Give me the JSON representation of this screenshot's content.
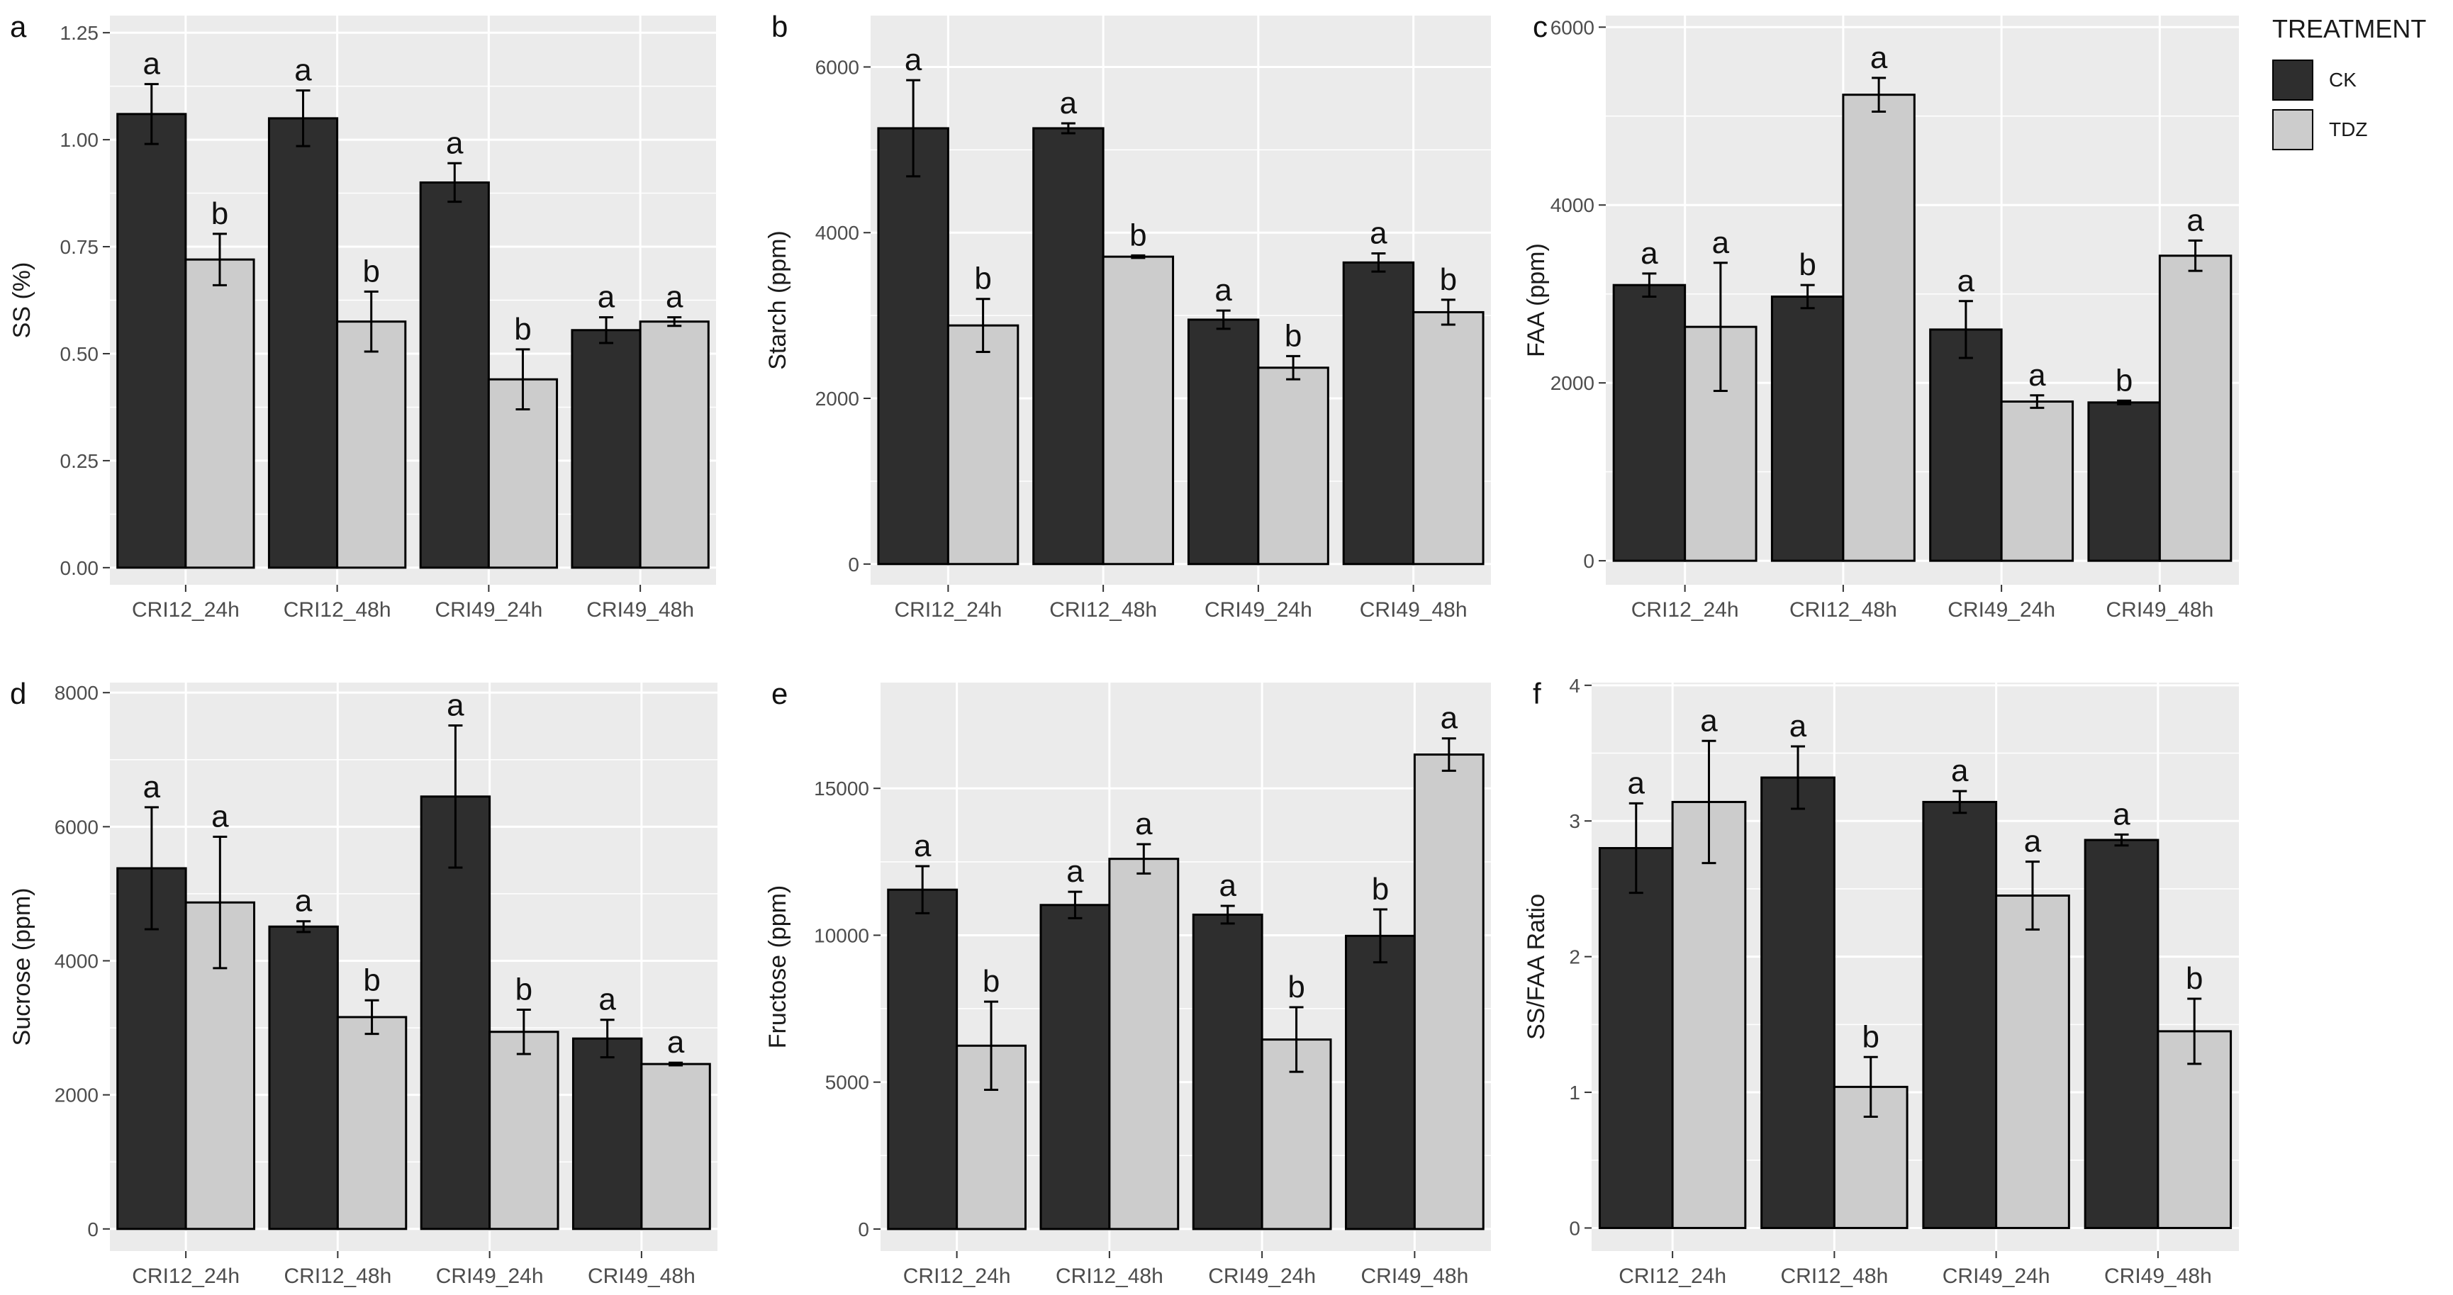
{
  "legend": {
    "title": "TREATMENT",
    "items": [
      {
        "label": "CK",
        "color": "#2e2e2e"
      },
      {
        "label": "TDZ",
        "color": "#cccccc"
      }
    ]
  },
  "colors": {
    "panel_bg": "#ebebeb",
    "grid": "#ffffff",
    "bar_outline": "#000000"
  },
  "chart_data": [
    {
      "panel_label": "a",
      "type": "bar",
      "ylabel": "SS (%)",
      "ylim": [
        -0.04,
        1.29
      ],
      "yticks": [
        0,
        0.25,
        0.5,
        0.75,
        1.0,
        1.25
      ],
      "ytick_labels": [
        "0.00",
        "0.25",
        "0.50",
        "0.75",
        "1.00",
        "1.25"
      ],
      "categories": [
        "CRI12_24h",
        "CRI12_48h",
        "CRI49_24h",
        "CRI49_48h"
      ],
      "series": [
        {
          "name": "CK",
          "values": [
            1.06,
            1.05,
            0.9,
            0.555
          ],
          "errors": [
            0.07,
            0.065,
            0.045,
            0.03
          ],
          "letters": [
            "a",
            "a",
            "a",
            "a"
          ]
        },
        {
          "name": "TDZ",
          "values": [
            0.72,
            0.575,
            0.44,
            0.575
          ],
          "errors": [
            0.06,
            0.07,
            0.07,
            0.01
          ],
          "letters": [
            "b",
            "b",
            "b",
            "a"
          ]
        }
      ]
    },
    {
      "panel_label": "b",
      "type": "bar",
      "ylabel": "Starch (ppm)",
      "ylim": [
        -250,
        6620
      ],
      "yticks": [
        0,
        2000,
        4000,
        6000
      ],
      "ytick_labels": [
        "0",
        "2000",
        "4000",
        "6000"
      ],
      "categories": [
        "CRI12_24h",
        "CRI12_48h",
        "CRI49_24h",
        "CRI49_48h"
      ],
      "series": [
        {
          "name": "CK",
          "values": [
            5260,
            5260,
            2950,
            3640
          ],
          "errors": [
            580,
            60,
            110,
            110
          ],
          "letters": [
            "a",
            "a",
            "a",
            "a"
          ]
        },
        {
          "name": "TDZ",
          "values": [
            2880,
            3710,
            2370,
            3040
          ],
          "errors": [
            320,
            15,
            140,
            150
          ],
          "letters": [
            "b",
            "b",
            "b",
            "b"
          ]
        }
      ]
    },
    {
      "panel_label": "c",
      "type": "bar",
      "ylabel": "FAA (ppm)",
      "ylim": [
        -270,
        6130
      ],
      "yticks": [
        0,
        2000,
        4000,
        6000
      ],
      "ytick_labels": [
        "0",
        "2000",
        "4000",
        "6000"
      ],
      "categories": [
        "CRI12_24h",
        "CRI12_48h",
        "CRI49_24h",
        "CRI49_48h"
      ],
      "series": [
        {
          "name": "CK",
          "values": [
            3100,
            2970,
            2600,
            1780
          ],
          "errors": [
            130,
            130,
            320,
            20
          ],
          "letters": [
            "a",
            "b",
            "a",
            "b"
          ]
        },
        {
          "name": "TDZ",
          "values": [
            2630,
            5240,
            1790,
            3430
          ],
          "errors": [
            720,
            190,
            70,
            170
          ],
          "letters": [
            "a",
            "a",
            "a",
            "a"
          ]
        }
      ]
    },
    {
      "panel_label": "d",
      "type": "bar",
      "ylabel": "Sucrose (ppm)",
      "ylim": [
        -330,
        8150
      ],
      "yticks": [
        0,
        2000,
        4000,
        6000,
        8000
      ],
      "ytick_labels": [
        "0",
        "2000",
        "4000",
        "6000",
        "8000"
      ],
      "categories": [
        "CRI12_24h",
        "CRI12_48h",
        "CRI49_24h",
        "CRI49_48h"
      ],
      "series": [
        {
          "name": "CK",
          "values": [
            5380,
            4510,
            6450,
            2840
          ],
          "errors": [
            910,
            80,
            1060,
            280
          ],
          "letters": [
            "a",
            "a",
            "a",
            "a"
          ]
        },
        {
          "name": "TDZ",
          "values": [
            4870,
            3160,
            2940,
            2460
          ],
          "errors": [
            980,
            250,
            330,
            20
          ],
          "letters": [
            "a",
            "b",
            "b",
            "a"
          ]
        }
      ]
    },
    {
      "panel_label": "e",
      "type": "bar",
      "ylabel": "Fructose (ppm)",
      "ylim": [
        -750,
        18600
      ],
      "yticks": [
        0,
        5000,
        10000,
        15000
      ],
      "ytick_labels": [
        "0",
        "5000",
        "10000",
        "15000"
      ],
      "categories": [
        "CRI12_24h",
        "CRI12_48h",
        "CRI49_24h",
        "CRI49_48h"
      ],
      "series": [
        {
          "name": "CK",
          "values": [
            11550,
            11030,
            10700,
            9980
          ],
          "errors": [
            800,
            450,
            300,
            900
          ],
          "letters": [
            "a",
            "a",
            "a",
            "b"
          ]
        },
        {
          "name": "TDZ",
          "values": [
            6240,
            12600,
            6450,
            16150
          ],
          "errors": [
            1500,
            500,
            1100,
            550
          ],
          "letters": [
            "b",
            "a",
            "b",
            "a"
          ]
        }
      ]
    },
    {
      "panel_label": "f",
      "type": "bar",
      "ylabel": "SS/FAA Ratio",
      "ylim": [
        -0.17,
        4.02
      ],
      "yticks": [
        0,
        1,
        2,
        3,
        4
      ],
      "ytick_labels": [
        "0",
        "1",
        "2",
        "3",
        "4"
      ],
      "categories": [
        "CRI12_24h",
        "CRI12_48h",
        "CRI49_24h",
        "CRI49_48h"
      ],
      "series": [
        {
          "name": "CK",
          "values": [
            2.8,
            3.32,
            3.14,
            2.86
          ],
          "errors": [
            0.33,
            0.23,
            0.08,
            0.04
          ],
          "letters": [
            "a",
            "a",
            "a",
            "a"
          ]
        },
        {
          "name": "TDZ",
          "values": [
            3.14,
            1.04,
            2.45,
            1.45
          ],
          "errors": [
            0.45,
            0.22,
            0.25,
            0.24
          ],
          "letters": [
            "a",
            "b",
            "a",
            "b"
          ]
        }
      ]
    }
  ]
}
